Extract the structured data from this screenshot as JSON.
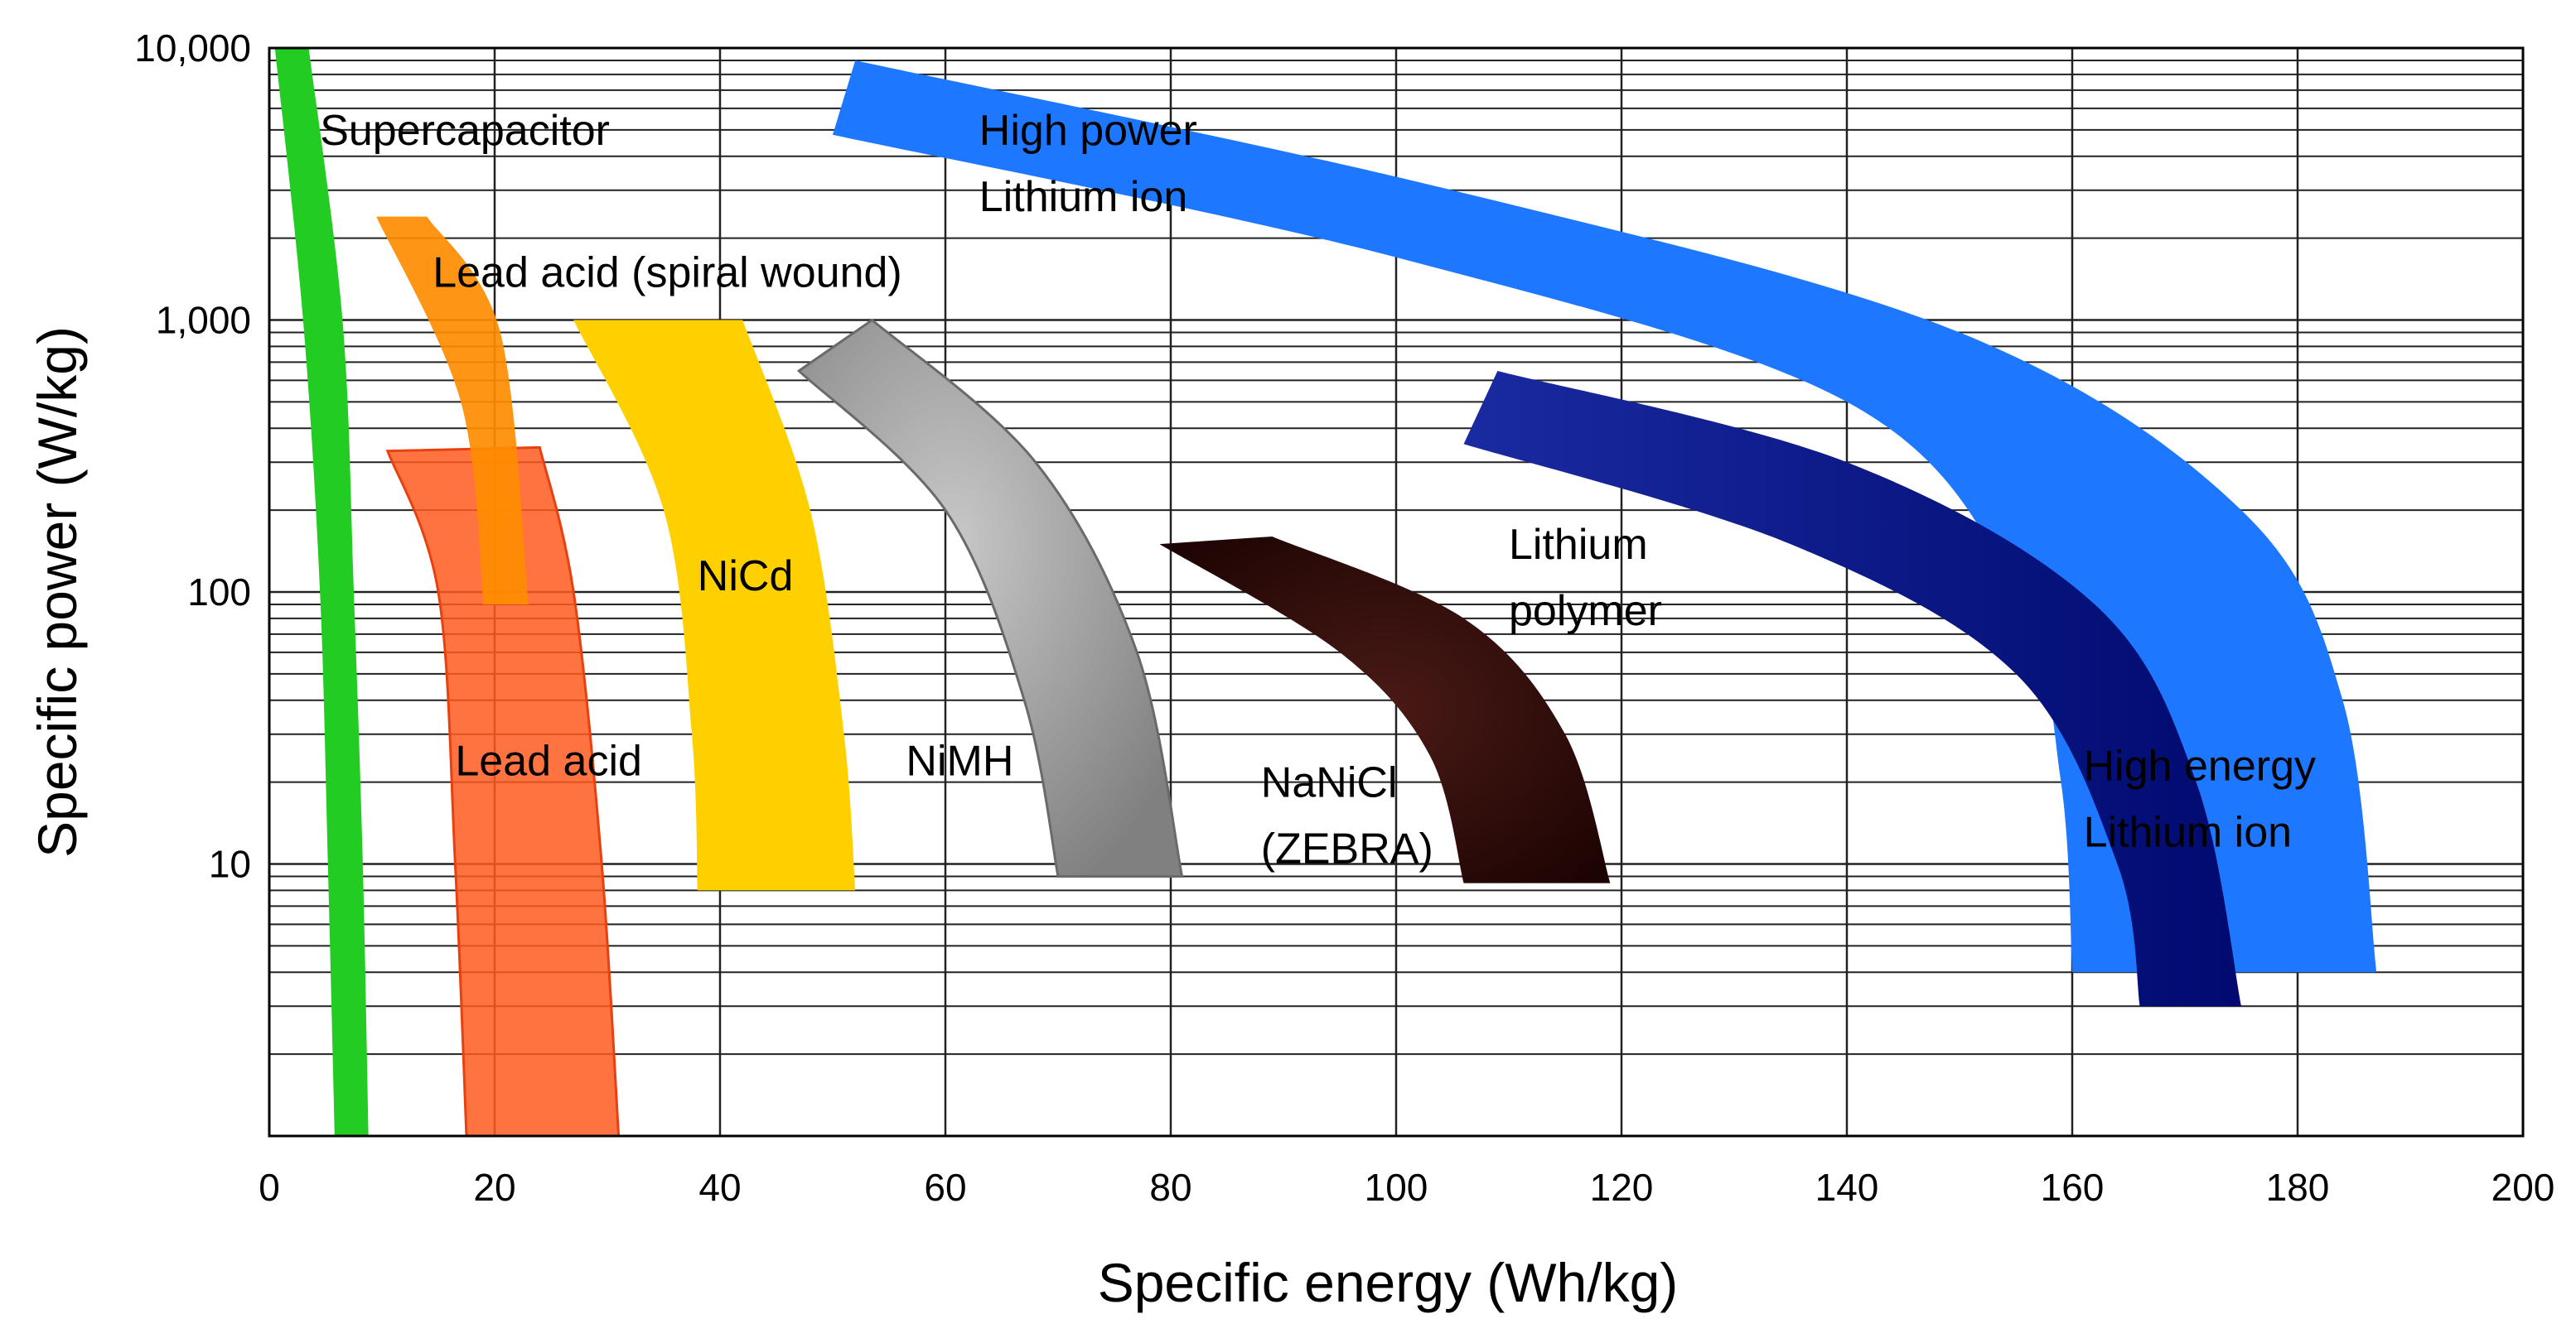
{
  "chart_data": {
    "type": "area",
    "title": "",
    "xlabel": "Specific energy (Wh/kg)",
    "ylabel": "Specific power (W/kg)",
    "xlim": [
      0,
      200
    ],
    "ylim": [
      1,
      10000
    ],
    "yscale": "log",
    "grid": true,
    "x_ticks": [
      {
        "value": 0,
        "label": "0"
      },
      {
        "value": 20,
        "label": "20"
      },
      {
        "value": 40,
        "label": "40"
      },
      {
        "value": 60,
        "label": "60"
      },
      {
        "value": 80,
        "label": "80"
      },
      {
        "value": 100,
        "label": "100"
      },
      {
        "value": 120,
        "label": "120"
      },
      {
        "value": 140,
        "label": "140"
      },
      {
        "value": 160,
        "label": "160"
      },
      {
        "value": 180,
        "label": "180"
      },
      {
        "value": 200,
        "label": "200"
      }
    ],
    "y_ticks": [
      {
        "value": 10,
        "label": "10"
      },
      {
        "value": 100,
        "label": "100"
      },
      {
        "value": 1000,
        "label": "1,000"
      },
      {
        "value": 10000,
        "label": "10,000"
      }
    ],
    "regions": [
      {
        "name": "supercapacitor",
        "label": "Supercapacitor",
        "color": "#22cc22",
        "left": [
          [
            0.5,
            10000
          ],
          [
            3,
            1000
          ],
          [
            4.5,
            100
          ],
          [
            5.2,
            10
          ],
          [
            5.8,
            1
          ]
        ],
        "right": [
          [
            3.5,
            10000
          ],
          [
            6.5,
            1000
          ],
          [
            7.5,
            100
          ],
          [
            8.3,
            10
          ],
          [
            8.8,
            1
          ]
        ]
      },
      {
        "name": "lead-acid-spiral",
        "label": "Lead acid (spiral wound)",
        "color": "#ff8c00",
        "left": [
          [
            9.5,
            2400
          ],
          [
            17,
            500
          ],
          [
            19,
            90
          ]
        ],
        "right": [
          [
            14,
            2400
          ],
          [
            20.5,
            900
          ],
          [
            23,
            90
          ]
        ]
      },
      {
        "name": "lead-acid",
        "label": "Lead acid",
        "color": "#ff5a1f",
        "left": [
          [
            10.5,
            330
          ],
          [
            15,
            100
          ],
          [
            16.5,
            10
          ],
          [
            17.5,
            1
          ]
        ],
        "right": [
          [
            24,
            340
          ],
          [
            27,
            100
          ],
          [
            29.5,
            10
          ],
          [
            31,
            1
          ]
        ]
      },
      {
        "name": "nicd",
        "label": "NiCd",
        "color": "#ffd000",
        "left": [
          [
            27,
            1000
          ],
          [
            35,
            200
          ],
          [
            37.5,
            30
          ],
          [
            38,
            8
          ]
        ],
        "right": [
          [
            42,
            1000
          ],
          [
            48,
            200
          ],
          [
            51,
            30
          ],
          [
            52,
            8
          ]
        ]
      },
      {
        "name": "nimh",
        "label": "NiMH",
        "color": "#9a9a9a",
        "left": [
          [
            47,
            650
          ],
          [
            60,
            200
          ],
          [
            67,
            40
          ],
          [
            70,
            9
          ]
        ],
        "right": [
          [
            53.5,
            1000
          ],
          [
            68,
            300
          ],
          [
            77,
            60
          ],
          [
            81,
            9
          ]
        ]
      },
      {
        "name": "nanicl",
        "label": "NaNiCl (ZEBRA)",
        "color": "#2b0806",
        "left": [
          [
            79,
            150
          ],
          [
            95,
            60
          ],
          [
            103,
            25
          ],
          [
            106,
            8.5
          ]
        ],
        "right": [
          [
            89,
            160
          ],
          [
            106,
            80
          ],
          [
            115,
            30
          ],
          [
            119,
            8.5
          ]
        ]
      },
      {
        "name": "lithium-polymer",
        "label": "Lithium polymer",
        "color": "#0a1a8c",
        "left": [
          [
            106,
            350
          ],
          [
            135,
            150
          ],
          [
            155,
            50
          ],
          [
            164,
            10
          ],
          [
            166,
            3
          ]
        ],
        "right": [
          [
            109,
            650
          ],
          [
            140,
            300
          ],
          [
            162,
            90
          ],
          [
            171,
            20
          ],
          [
            175,
            3
          ]
        ]
      },
      {
        "name": "high-power-lithium-ion",
        "label": "High power Lithium ion",
        "color": "#1e78ff",
        "left": [
          [
            50,
            4800
          ],
          [
            100,
            1700
          ],
          [
            140,
            500
          ],
          [
            155,
            100
          ],
          [
            159,
            20
          ],
          [
            160,
            4
          ]
        ]
      },
      {
        "name": "high-energy-lithium-ion",
        "label": "High energy Lithium ion",
        "color": "#1e78ff",
        "right": [
          [
            52,
            9000
          ],
          [
            105,
            3000
          ],
          [
            150,
            900
          ],
          [
            175,
            200
          ],
          [
            184,
            40
          ],
          [
            187,
            4
          ]
        ]
      }
    ],
    "annotations": [
      {
        "name": "label-supercapacitor",
        "lines": [
          "Supercapacitor"
        ],
        "x": 4.5,
        "y": 5000
      },
      {
        "name": "label-lead-acid-spiral",
        "lines": [
          "Lead acid (spiral wound)"
        ],
        "x": 14.5,
        "y": 1500
      },
      {
        "name": "label-lead-acid",
        "lines": [
          "Lead acid"
        ],
        "x": 16.5,
        "y": 24
      },
      {
        "name": "label-nicd",
        "lines": [
          "NiCd"
        ],
        "x": 38,
        "y": 115
      },
      {
        "name": "label-nimh",
        "lines": [
          "NiMH"
        ],
        "x": 56.5,
        "y": 24
      },
      {
        "name": "label-nanicl",
        "lines": [
          "NaNiCl",
          "(ZEBRA)"
        ],
        "x": 88,
        "y": 20
      },
      {
        "name": "label-lithium-polymer",
        "lines": [
          "Lithium",
          "polymer"
        ],
        "x": 110,
        "y": 150
      },
      {
        "name": "label-high-power-li-ion",
        "lines": [
          "High power",
          "Lithium ion"
        ],
        "x": 63,
        "y": 5000
      },
      {
        "name": "label-high-energy-li-ion",
        "lines": [
          "High energy",
          "Lithium ion"
        ],
        "x": 161,
        "y": 23
      }
    ]
  }
}
